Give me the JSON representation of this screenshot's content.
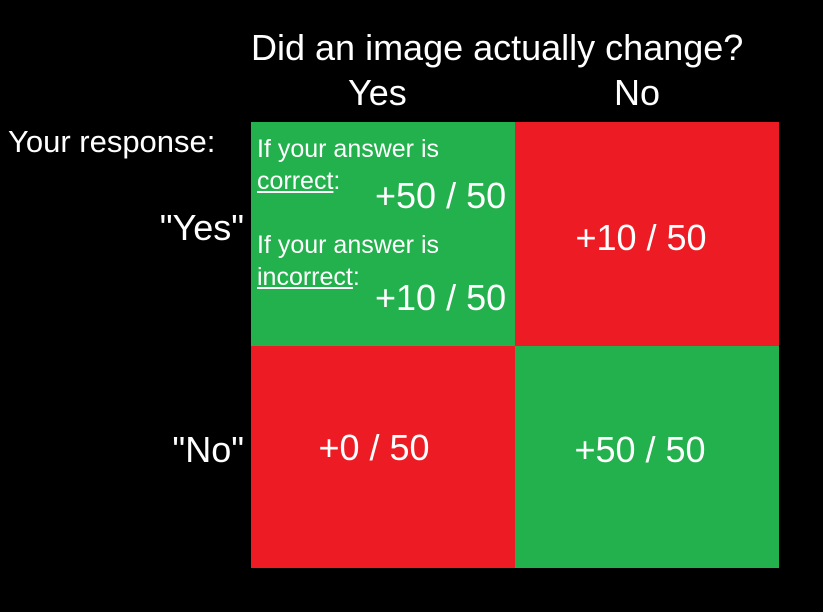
{
  "header": {
    "question": "Did an image actually change?",
    "col_yes": "Yes",
    "col_no": "No"
  },
  "rows": {
    "caption": "Your response:",
    "row_yes": "\"Yes\"",
    "row_no": "\"No\""
  },
  "cells": {
    "yes_yes": {
      "intro_correct": "If your answer is",
      "correct_word": "correct",
      "correct_colon": ":",
      "correct_value": "+50 / 50",
      "intro_incorrect": "If your answer is",
      "incorrect_word": "incorrect",
      "incorrect_colon": ":",
      "incorrect_value": "+10 / 50"
    },
    "yes_no": {
      "value": "+10 / 50"
    },
    "no_yes": {
      "value": "+0 / 50"
    },
    "no_no": {
      "value": "+50 / 50"
    }
  },
  "colors": {
    "background": "#000000",
    "green": "#22b14c",
    "red": "#ed1c24",
    "text": "#ffffff"
  }
}
